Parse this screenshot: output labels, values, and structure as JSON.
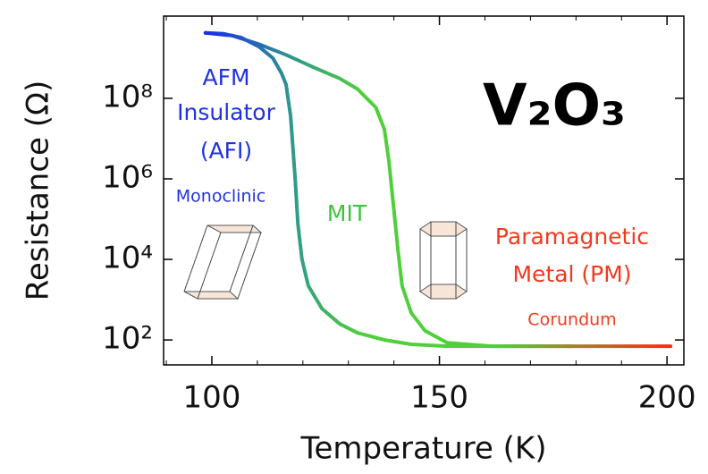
{
  "chart_data": {
    "type": "line",
    "title": "V₂O₃",
    "x_label": "Temperature (K)",
    "y_label": "Resistance (Ω)",
    "log_y": true,
    "xlim": [
      89.4,
      203.7
    ],
    "ylim": [
      24,
      11000000000.0
    ],
    "xticks": [
      100,
      150,
      200
    ],
    "xticks_minor": [
      90,
      110,
      120,
      130,
      140,
      160,
      170,
      180,
      190
    ],
    "yticks": [
      {
        "value": 100,
        "label": "10²"
      },
      {
        "value": 10000,
        "label": "10⁴"
      },
      {
        "value": 1000000,
        "label": "10⁶"
      },
      {
        "value": 100000000,
        "label": "10⁸"
      }
    ],
    "color_scale": [
      "#1a2fe8",
      "#2f9a8a",
      "#4fd03a",
      "#4fd03a",
      "#ff2a10"
    ],
    "annotations": [
      "AFM",
      "Insulator",
      "(AFI)",
      "Monoclinic",
      "MIT",
      "Paramagnetic",
      "Metal (PM)",
      "Corundum"
    ],
    "series": [
      {
        "x": [
          98.6,
          102.6,
          106.5,
          110.4,
          113.4,
          115.3,
          116.3,
          117.3,
          118.3,
          118.9,
          119.8,
          121.2,
          124.2,
          128.1,
          132.0,
          137.9,
          143.8,
          151.7,
          171.3,
          179.2
        ],
        "values": [
          4200000000.0,
          4000000000.0,
          3200000000.0,
          1900000000.0,
          1000000000.0,
          420000000.0,
          220000000.0,
          36000000.0,
          1000000.0,
          78000.0,
          10000.0,
          2200,
          600,
          250,
          150,
          100,
          78,
          70,
          70,
          70
        ]
      },
      {
        "x": [
          98.6,
          104.5,
          110.4,
          116.3,
          122.2,
          128.1,
          132.0,
          134.0,
          136.0,
          137.9,
          138.9,
          139.9,
          140.9,
          141.8,
          143.8,
          146.8,
          151.7,
          161.5,
          181.1,
          200.8
        ],
        "values": [
          4200000000.0,
          3600000000.0,
          2200000000.0,
          1200000000.0,
          600000000.0,
          310000000.0,
          170000000.0,
          100000000.0,
          60000000.0,
          17000000.0,
          2800000.0,
          220000.0,
          17000.0,
          2200,
          470,
          170,
          85,
          70,
          70,
          70
        ]
      }
    ]
  }
}
